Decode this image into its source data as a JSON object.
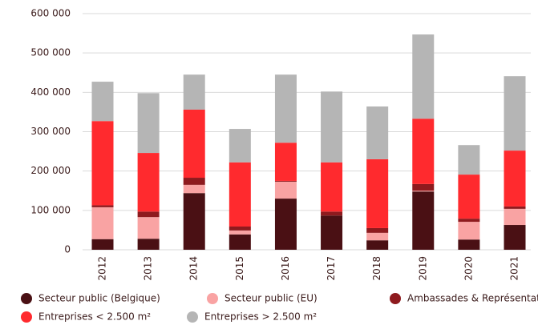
{
  "chart_data": {
    "type": "stacked_bar",
    "categories": [
      "2012",
      "2013",
      "2014",
      "2015",
      "2016",
      "2017",
      "2018",
      "2019",
      "2020",
      "2021"
    ],
    "series": [
      {
        "name": "Secteur public (Belgique)",
        "color": "#4a1014",
        "values": [
          27000,
          28000,
          144000,
          39000,
          130000,
          87000,
          24000,
          148000,
          26000,
          63000
        ]
      },
      {
        "name": "Secteur public (EU)",
        "color": "#f9a3a3",
        "values": [
          81000,
          55000,
          21000,
          10000,
          43000,
          0,
          19000,
          2000,
          45000,
          41000
        ]
      },
      {
        "name": "Ambassades & Représentations",
        "color": "#8e1a1e",
        "values": [
          5000,
          14000,
          18000,
          10000,
          2000,
          10000,
          12000,
          17000,
          8000,
          6000
        ]
      },
      {
        "name": "Entreprises < 2.500 m²",
        "color": "#ff2a2e",
        "values": [
          214000,
          149000,
          173000,
          163000,
          97000,
          125000,
          175000,
          166000,
          112000,
          142000
        ]
      },
      {
        "name": "Entreprises > 2.500 m²",
        "color": "#b5b5b5",
        "values": [
          100000,
          152000,
          89000,
          85000,
          173000,
          180000,
          134000,
          214000,
          75000,
          189000
        ]
      }
    ],
    "ylim": [
      0,
      600000
    ],
    "yticks": [
      0,
      {
        "value": 100000,
        "label": "100 000"
      },
      {
        "value": 200000,
        "label": "200 000"
      },
      {
        "value": 300000,
        "label": "300 000"
      },
      {
        "value": 400000,
        "label": "400 000"
      },
      {
        "value": 500000,
        "label": "500 000"
      },
      {
        "value": 600000,
        "label": "600 000"
      }
    ],
    "grid": true
  }
}
